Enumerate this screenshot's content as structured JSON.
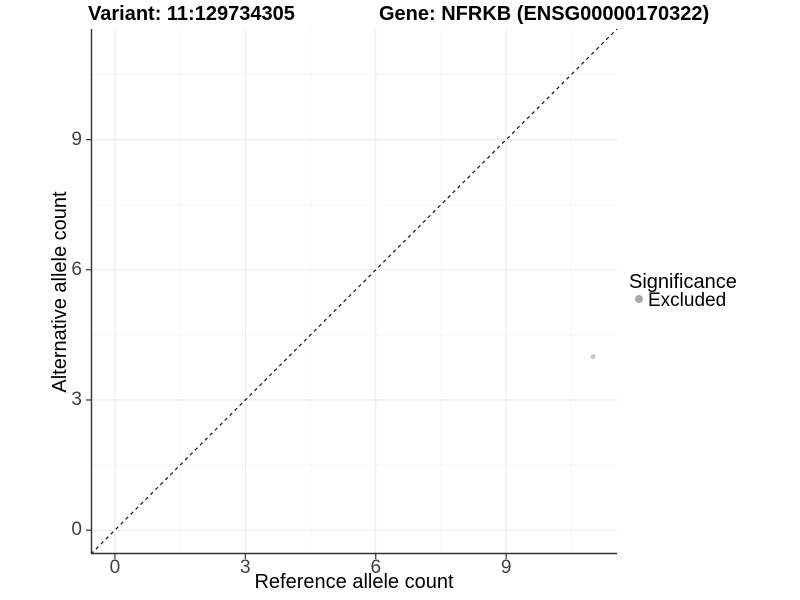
{
  "chart_data": {
    "type": "scatter",
    "titles": {
      "left": "Variant: 11:129734305",
      "right": "Gene: NFRKB (ENSG00000170322)"
    },
    "xlabel": "Reference allele count",
    "ylabel": "Alternative allele count",
    "xlim": [
      -0.55,
      11.55
    ],
    "ylim": [
      -0.55,
      11.55
    ],
    "xticks": [
      0,
      3,
      6,
      9
    ],
    "yticks": [
      0,
      3,
      6,
      9
    ],
    "grid": {
      "major": true,
      "minor": true,
      "major_color": "#ebebeb",
      "minor_color": "#f5f5f5"
    },
    "reference_line": {
      "kind": "identity y=x",
      "style": "dashed",
      "color": "#111111"
    },
    "series": [
      {
        "name": "Excluded",
        "point_color": "#c4c4c4",
        "points": [
          {
            "x": 11,
            "y": 4
          }
        ]
      }
    ],
    "legend": {
      "title": "Significance",
      "position": "right",
      "items": [
        {
          "label": "Excluded",
          "color": "#a9a9a9"
        }
      ]
    },
    "axis": {
      "line_color": "#333333",
      "tick_color": "#333333",
      "tick_label_color": "#404040"
    }
  }
}
